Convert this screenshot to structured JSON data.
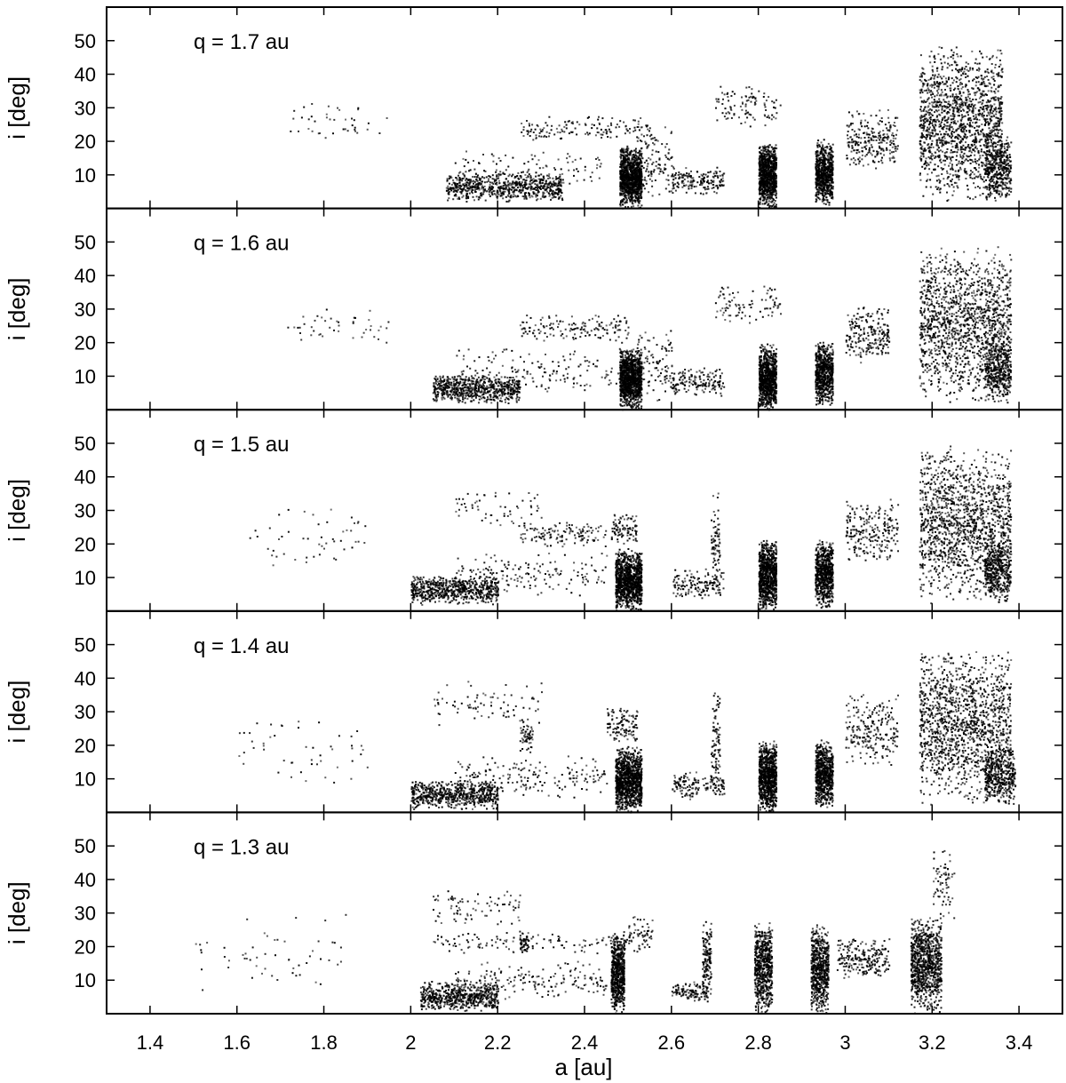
{
  "chart_data": {
    "type": "scatter",
    "xlabel": "a [au]",
    "ylabel": "i [deg]",
    "xlim": [
      1.3,
      3.5
    ],
    "ylim": [
      0,
      60
    ],
    "x_ticks": [
      "1.4",
      "1.6",
      "1.8",
      "2",
      "2.2",
      "2.4",
      "2.6",
      "2.8",
      "3",
      "3.2",
      "3.4"
    ],
    "y_ticks": [
      "10",
      "20",
      "30",
      "40",
      "50"
    ],
    "grid": false,
    "marker_color": "#000000",
    "panels": [
      {
        "label": "q = 1.7 au",
        "q": 1.7,
        "clusters": [
          {
            "a": [
              1.7,
              1.95
            ],
            "i": [
              18,
              33
            ],
            "n": 40
          },
          {
            "a": [
              2.08,
              2.35
            ],
            "i": [
              2,
              11
            ],
            "n": 700
          },
          {
            "a": [
              2.1,
              2.45
            ],
            "i": [
              5,
              18
            ],
            "n": 120
          },
          {
            "a": [
              2.25,
              2.55
            ],
            "i": [
              20,
              28
            ],
            "n": 150
          },
          {
            "a": [
              2.48,
              2.53
            ],
            "i": [
              0,
              19
            ],
            "n": 1100
          },
          {
            "a": [
              2.52,
              2.6
            ],
            "i": [
              2,
              26
            ],
            "n": 120
          },
          {
            "a": [
              2.6,
              2.72
            ],
            "i": [
              4,
              13
            ],
            "n": 180
          },
          {
            "a": [
              2.7,
              2.85
            ],
            "i": [
              24,
              38
            ],
            "n": 100
          },
          {
            "a": [
              2.8,
              2.84
            ],
            "i": [
              0,
              20
            ],
            "n": 900
          },
          {
            "a": [
              2.93,
              2.97
            ],
            "i": [
              1,
              21
            ],
            "n": 700
          },
          {
            "a": [
              3.0,
              3.12
            ],
            "i": [
              12,
              30
            ],
            "n": 250
          },
          {
            "a": [
              3.17,
              3.36
            ],
            "i": [
              2,
              50
            ],
            "n": 1500
          },
          {
            "a": [
              3.32,
              3.38
            ],
            "i": [
              2,
              22
            ],
            "n": 400
          }
        ]
      },
      {
        "label": "q = 1.6 au",
        "q": 1.6,
        "clusters": [
          {
            "a": [
              1.7,
              1.95
            ],
            "i": [
              18,
              32
            ],
            "n": 45
          },
          {
            "a": [
              2.05,
              2.25
            ],
            "i": [
              2,
              11
            ],
            "n": 700
          },
          {
            "a": [
              2.1,
              2.48
            ],
            "i": [
              4,
              19
            ],
            "n": 150
          },
          {
            "a": [
              2.25,
              2.5
            ],
            "i": [
              20,
              29
            ],
            "n": 150
          },
          {
            "a": [
              2.48,
              2.53
            ],
            "i": [
              0,
              19
            ],
            "n": 1100
          },
          {
            "a": [
              2.52,
              2.6
            ],
            "i": [
              2,
              26
            ],
            "n": 100
          },
          {
            "a": [
              2.6,
              2.72
            ],
            "i": [
              4,
              13
            ],
            "n": 160
          },
          {
            "a": [
              2.7,
              2.85
            ],
            "i": [
              24,
              38
            ],
            "n": 90
          },
          {
            "a": [
              2.8,
              2.84
            ],
            "i": [
              0,
              20
            ],
            "n": 900
          },
          {
            "a": [
              2.93,
              2.97
            ],
            "i": [
              1,
              21
            ],
            "n": 700
          },
          {
            "a": [
              3.0,
              3.1
            ],
            "i": [
              14,
              32
            ],
            "n": 220
          },
          {
            "a": [
              3.17,
              3.38
            ],
            "i": [
              2,
              50
            ],
            "n": 1400
          },
          {
            "a": [
              3.32,
              3.38
            ],
            "i": [
              2,
              22
            ],
            "n": 400
          }
        ]
      },
      {
        "label": "q = 1.5 au",
        "q": 1.5,
        "clusters": [
          {
            "a": [
              1.62,
              1.9
            ],
            "i": [
              12,
              32
            ],
            "n": 50
          },
          {
            "a": [
              2.0,
              2.2
            ],
            "i": [
              2,
              11
            ],
            "n": 650
          },
          {
            "a": [
              2.1,
              2.45
            ],
            "i": [
              4,
              18
            ],
            "n": 170
          },
          {
            "a": [
              2.1,
              2.3
            ],
            "i": [
              25,
              38
            ],
            "n": 60
          },
          {
            "a": [
              2.25,
              2.45
            ],
            "i": [
              19,
              27
            ],
            "n": 130
          },
          {
            "a": [
              2.47,
              2.53
            ],
            "i": [
              0,
              19
            ],
            "n": 1100
          },
          {
            "a": [
              2.46,
              2.52
            ],
            "i": [
              20,
              30
            ],
            "n": 90
          },
          {
            "a": [
              2.6,
              2.72
            ],
            "i": [
              4,
              13
            ],
            "n": 150
          },
          {
            "a": [
              2.69,
              2.71
            ],
            "i": [
              5,
              36
            ],
            "n": 80
          },
          {
            "a": [
              2.8,
              2.84
            ],
            "i": [
              0,
              22
            ],
            "n": 900
          },
          {
            "a": [
              2.93,
              2.97
            ],
            "i": [
              1,
              22
            ],
            "n": 700
          },
          {
            "a": [
              3.0,
              3.12
            ],
            "i": [
              14,
              34
            ],
            "n": 230
          },
          {
            "a": [
              3.17,
              3.38
            ],
            "i": [
              2,
              50
            ],
            "n": 1400
          },
          {
            "a": [
              3.32,
              3.38
            ],
            "i": [
              2,
              22
            ],
            "n": 400
          }
        ]
      },
      {
        "label": "q = 1.4 au",
        "q": 1.4,
        "clusters": [
          {
            "a": [
              1.6,
              1.9
            ],
            "i": [
              8,
              32
            ],
            "n": 50
          },
          {
            "a": [
              2.0,
              2.2
            ],
            "i": [
              1,
              10
            ],
            "n": 650
          },
          {
            "a": [
              2.1,
              2.45
            ],
            "i": [
              4,
              18
            ],
            "n": 180
          },
          {
            "a": [
              2.05,
              2.3
            ],
            "i": [
              25,
              40
            ],
            "n": 80
          },
          {
            "a": [
              2.25,
              2.28
            ],
            "i": [
              18,
              28
            ],
            "n": 60
          },
          {
            "a": [
              2.47,
              2.53
            ],
            "i": [
              0,
              20
            ],
            "n": 1100
          },
          {
            "a": [
              2.45,
              2.52
            ],
            "i": [
              21,
              32
            ],
            "n": 120
          },
          {
            "a": [
              2.6,
              2.72
            ],
            "i": [
              4,
              13
            ],
            "n": 150
          },
          {
            "a": [
              2.69,
              2.71
            ],
            "i": [
              5,
              38
            ],
            "n": 90
          },
          {
            "a": [
              2.8,
              2.84
            ],
            "i": [
              0,
              22
            ],
            "n": 900
          },
          {
            "a": [
              2.93,
              2.97
            ],
            "i": [
              1,
              22
            ],
            "n": 700
          },
          {
            "a": [
              3.0,
              3.12
            ],
            "i": [
              14,
              36
            ],
            "n": 230
          },
          {
            "a": [
              3.17,
              3.38
            ],
            "i": [
              2,
              50
            ],
            "n": 1400
          },
          {
            "a": [
              3.32,
              3.39
            ],
            "i": [
              2,
              20
            ],
            "n": 400
          }
        ]
      },
      {
        "label": "q = 1.3 au",
        "q": 1.3,
        "clusters": [
          {
            "a": [
              1.5,
              1.85
            ],
            "i": [
              5,
              32
            ],
            "n": 55
          },
          {
            "a": [
              2.02,
              2.2
            ],
            "i": [
              1,
              10
            ],
            "n": 600
          },
          {
            "a": [
              2.1,
              2.45
            ],
            "i": [
              4,
              16
            ],
            "n": 180
          },
          {
            "a": [
              2.05,
              2.25
            ],
            "i": [
              25,
              38
            ],
            "n": 80
          },
          {
            "a": [
              2.05,
              2.5
            ],
            "i": [
              18,
              25
            ],
            "n": 120
          },
          {
            "a": [
              2.25,
              2.27
            ],
            "i": [
              18,
              25
            ],
            "n": 50
          },
          {
            "a": [
              2.46,
              2.49
            ],
            "i": [
              0,
              25
            ],
            "n": 650
          },
          {
            "a": [
              2.5,
              2.56
            ],
            "i": [
              18,
              30
            ],
            "n": 60
          },
          {
            "a": [
              2.6,
              2.68
            ],
            "i": [
              4,
              10
            ],
            "n": 110
          },
          {
            "a": [
              2.67,
              2.69
            ],
            "i": [
              3,
              29
            ],
            "n": 160
          },
          {
            "a": [
              2.79,
              2.83
            ],
            "i": [
              0,
              28
            ],
            "n": 650
          },
          {
            "a": [
              2.92,
              2.96
            ],
            "i": [
              0,
              27
            ],
            "n": 650
          },
          {
            "a": [
              2.98,
              3.1
            ],
            "i": [
              10,
              23
            ],
            "n": 220
          },
          {
            "a": [
              3.15,
              3.22
            ],
            "i": [
              0,
              30
            ],
            "n": 900
          },
          {
            "a": [
              3.2,
              3.25
            ],
            "i": [
              28,
              50
            ],
            "n": 70
          }
        ]
      }
    ]
  }
}
